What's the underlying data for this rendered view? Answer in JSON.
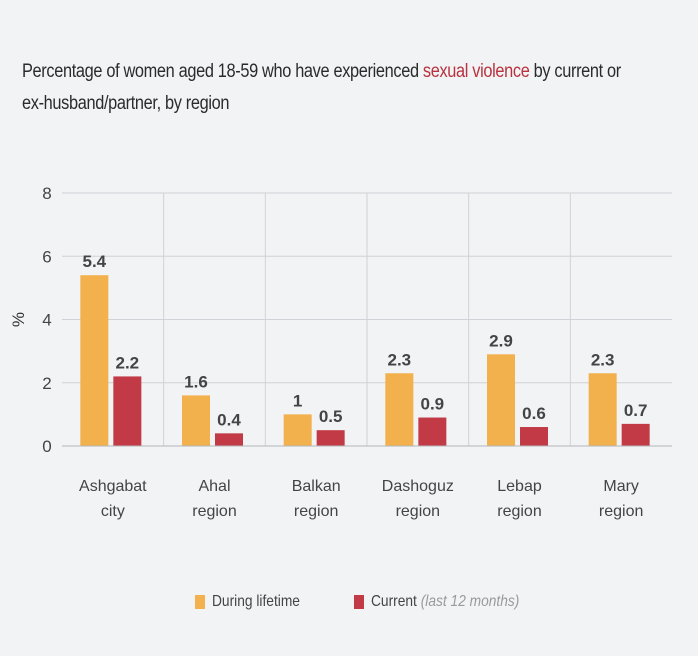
{
  "title": {
    "before": "Percentage of women aged 18-59 who have experienced ",
    "highlight": "sexual violence",
    "after_line1": " by current or",
    "line2": "ex-husband/partner, by region"
  },
  "colors": {
    "lifetime": "#f2b14d",
    "current": "#c13a45",
    "highlight": "#b8323f",
    "grid": "#cfd2d6",
    "axis": "#b3b6ba"
  },
  "legend": {
    "lifetime_label": "During lifetime",
    "current_label": "Current",
    "current_note": "(last 12 months)"
  },
  "chart_data": {
    "type": "bar",
    "ylabel": "%",
    "ylim": [
      0,
      8
    ],
    "yticks": [
      0,
      2,
      4,
      6,
      8
    ],
    "grid": true,
    "legend_position": "bottom",
    "categories": [
      [
        "Ashgabat",
        "city"
      ],
      [
        "Ahal",
        "region"
      ],
      [
        "Balkan",
        "region"
      ],
      [
        "Dashoguz",
        "region"
      ],
      [
        "Lebap",
        "region"
      ],
      [
        "Mary",
        "region"
      ]
    ],
    "series": [
      {
        "name": "During lifetime",
        "values": [
          5.4,
          1.6,
          1,
          2.3,
          2.9,
          2.3
        ],
        "labels": [
          "5.4",
          "1.6",
          "1",
          "2.3",
          "2.9",
          "2.3"
        ]
      },
      {
        "name": "Current (last 12 months)",
        "values": [
          2.2,
          0.4,
          0.5,
          0.9,
          0.6,
          0.7
        ],
        "labels": [
          "2.2",
          "0.4",
          "0.5",
          "0.9",
          "0.6",
          "0.7"
        ]
      }
    ]
  }
}
